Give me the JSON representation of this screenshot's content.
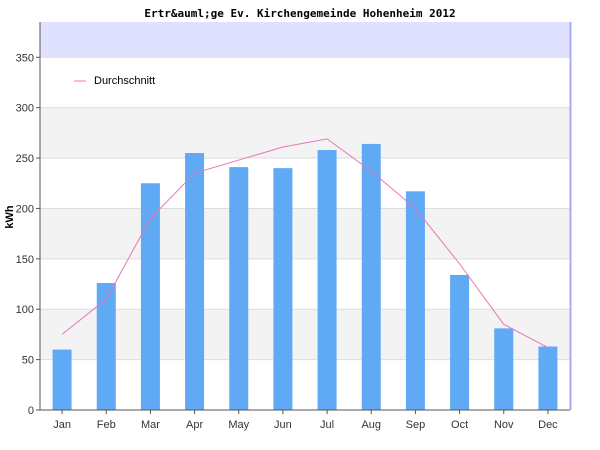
{
  "chart_data": {
    "type": "bar",
    "title": "Ertr&auml;ge Ev. Kirchengemeinde Hohenheim 2012",
    "xlabel": "",
    "ylabel": "kWh",
    "ylim": [
      0,
      350
    ],
    "visible_top": 385,
    "yticks": [
      0,
      50,
      100,
      150,
      200,
      250,
      300,
      350
    ],
    "grid": true,
    "legend_position": "top-left",
    "categories": [
      "Jan",
      "Feb",
      "Mar",
      "Apr",
      "May",
      "Jun",
      "Jul",
      "Aug",
      "Sep",
      "Oct",
      "Nov",
      "Dec"
    ],
    "series": [
      {
        "kind": "bar",
        "values": [
          60,
          126,
          225,
          255,
          241,
          240,
          258,
          264,
          217,
          134,
          81,
          63
        ]
      },
      {
        "kind": "line",
        "name": "Durchschnitt",
        "values": [
          75,
          110,
          190,
          235,
          248,
          261,
          269,
          237,
          200,
          145,
          85,
          62
        ]
      }
    ],
    "colors": {
      "bar": "#60a9f4",
      "line": "#ea74b8",
      "band_light": "#ffffff",
      "band_dark": "#f3f3f3",
      "top_band": "#e0e0ff",
      "grid": "#dddddd",
      "axis": "#555555",
      "right_edge": "#aaaaee"
    }
  }
}
